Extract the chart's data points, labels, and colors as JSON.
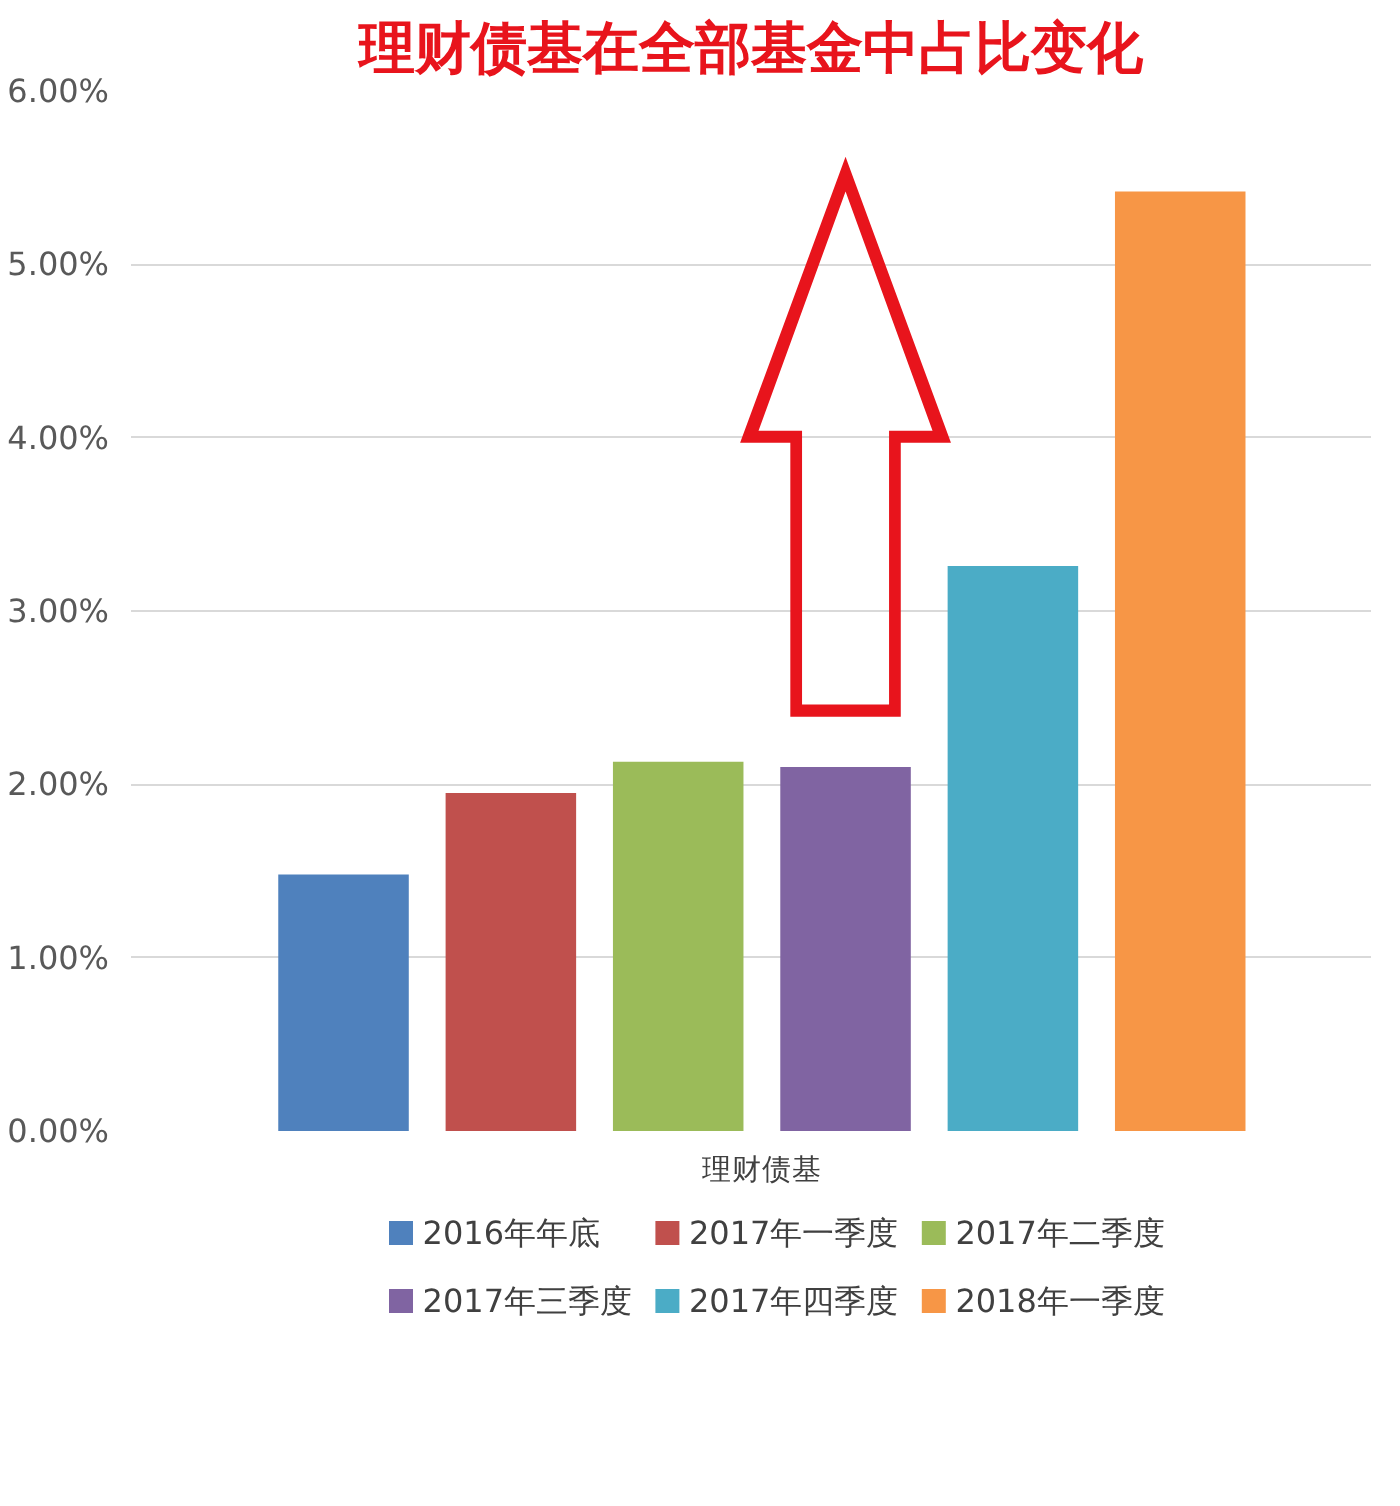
{
  "chart_data": {
    "type": "bar",
    "title": "理财债基在全部基金中占比变化",
    "categories": [
      "理财债基"
    ],
    "series": [
      {
        "name": "2016年年底",
        "color": "#4f81bd",
        "values": [
          1.48
        ]
      },
      {
        "name": "2017年一季度",
        "color": "#c0504d",
        "values": [
          1.95
        ]
      },
      {
        "name": "2017年二季度",
        "color": "#9bbb59",
        "values": [
          2.13
        ]
      },
      {
        "name": "2017年三季度",
        "color": "#8064a2",
        "values": [
          2.1
        ]
      },
      {
        "name": "2017年四季度",
        "color": "#4bacc6",
        "values": [
          3.26
        ]
      },
      {
        "name": "2018年一季度",
        "color": "#f79646",
        "values": [
          5.42
        ]
      }
    ],
    "ylim": [
      0,
      6
    ],
    "yticks": [
      {
        "value": 0,
        "label": "0.00%"
      },
      {
        "value": 1,
        "label": "1.00%"
      },
      {
        "value": 2,
        "label": "2.00%"
      },
      {
        "value": 3,
        "label": "3.00%"
      },
      {
        "value": 4,
        "label": "4.00%"
      },
      {
        "value": 5,
        "label": "5.00%"
      },
      {
        "value": 6,
        "label": "6.00%"
      }
    ],
    "grid": "y",
    "legend": "bottom"
  }
}
